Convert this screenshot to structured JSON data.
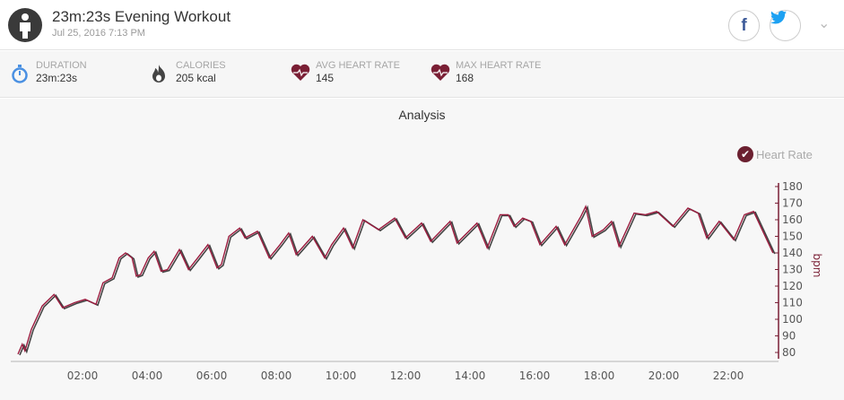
{
  "header": {
    "title": "23m:23s Evening Workout",
    "subtitle": "Jul 25, 2016 7:13 PM",
    "avatar_icon": "person-icon",
    "facebook_label": "f",
    "twitter_label": "🐦",
    "menu_icon": "chevron-down-icon"
  },
  "stats": [
    {
      "label": "DURATION",
      "value": "23m:23s",
      "icon": "stopwatch-icon",
      "color": "#4a90e2"
    },
    {
      "label": "CALORIES",
      "value": "205 kcal",
      "icon": "flame-icon",
      "color": "#444444"
    },
    {
      "label": "AVG HEART RATE",
      "value": "145",
      "icon": "heart-rate-icon",
      "color": "#7a1f35"
    },
    {
      "label": "MAX HEART RATE",
      "value": "168",
      "icon": "heart-rate-icon",
      "color": "#7a1f35"
    }
  ],
  "chart_data": {
    "type": "line",
    "title": "Analysis",
    "ylabel": "bpm",
    "xlabel": "",
    "ylim": [
      80,
      180
    ],
    "yticks": [
      180,
      170,
      160,
      150,
      140,
      130,
      120,
      110,
      100,
      90,
      80
    ],
    "xticks": [
      "02:00",
      "04:00",
      "06:00",
      "08:00",
      "10:00",
      "12:00",
      "14:00",
      "16:00",
      "18:00",
      "20:00",
      "22:00"
    ],
    "xlim": [
      "00:00",
      "23:23"
    ],
    "legend": "top-right",
    "grid": false,
    "series": [
      {
        "name": "Heart Rate",
        "color": "#9b1b3e",
        "x": [
          "00:00",
          "00:08",
          "00:13",
          "00:25",
          "00:45",
          "01:07",
          "01:23",
          "01:45",
          "02:05",
          "02:25",
          "02:38",
          "02:55",
          "03:08",
          "03:20",
          "03:32",
          "03:40",
          "03:48",
          "04:02",
          "04:13",
          "04:26",
          "04:38",
          "05:00",
          "05:17",
          "05:34",
          "05:53",
          "06:10",
          "06:18",
          "06:32",
          "06:52",
          "07:02",
          "07:25",
          "07:47",
          "08:07",
          "08:23",
          "08:37",
          "09:07",
          "09:30",
          "09:43",
          "10:05",
          "10:22",
          "10:41",
          "11:10",
          "11:40",
          "12:00",
          "12:30",
          "12:47",
          "13:23",
          "13:36",
          "14:13",
          "14:32",
          "14:56",
          "15:11",
          "15:22",
          "15:38",
          "15:53",
          "16:10",
          "16:40",
          "16:56",
          "17:26",
          "17:35",
          "17:47",
          "18:08",
          "18:23",
          "18:37",
          "19:05",
          "19:26",
          "19:47",
          "20:17",
          "20:45",
          "21:04",
          "21:20",
          "21:43",
          "22:10",
          "22:30",
          "22:47",
          "23:23"
        ],
        "y": [
          79,
          85,
          81,
          94,
          108,
          115,
          107,
          110,
          112,
          109,
          122,
          125,
          137,
          140,
          137,
          126,
          127,
          137,
          141,
          129,
          130,
          142,
          130,
          137,
          145,
          131,
          133,
          150,
          155,
          149,
          153,
          137,
          145,
          152,
          139,
          150,
          137,
          145,
          155,
          143,
          160,
          154,
          161,
          149,
          158,
          147,
          159,
          146,
          158,
          143,
          163,
          163,
          156,
          161,
          159,
          145,
          156,
          145,
          162,
          168,
          150,
          154,
          159,
          144,
          164,
          163,
          165,
          156,
          167,
          164,
          149,
          159,
          148,
          163,
          165,
          140
        ]
      }
    ]
  }
}
